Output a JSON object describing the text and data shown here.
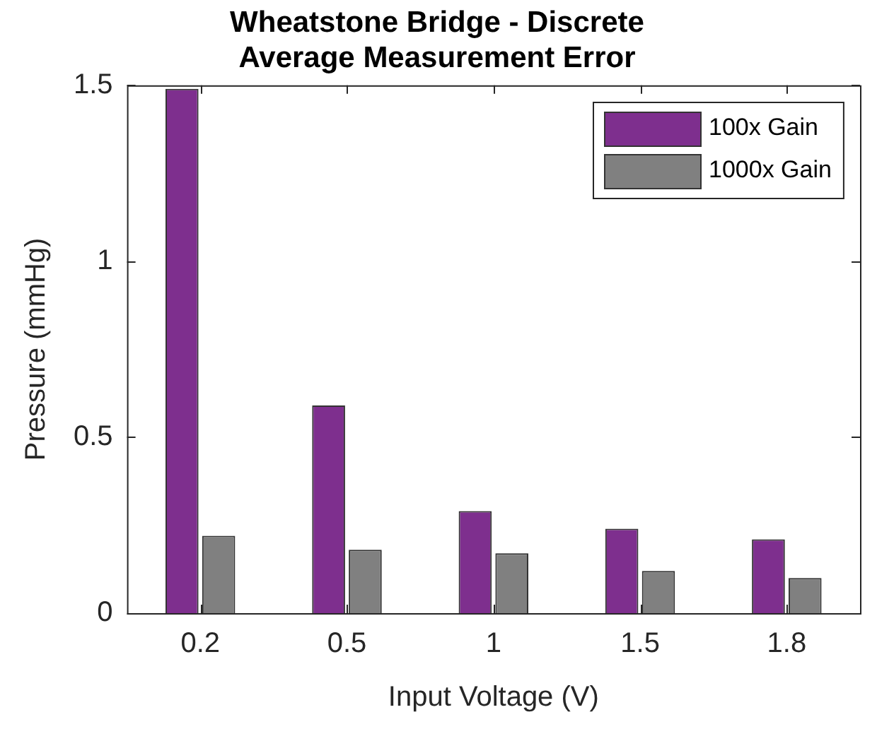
{
  "chart_data": {
    "type": "bar",
    "title": [
      "Wheatstone Bridge - Discrete",
      "Average Measurement Error"
    ],
    "xlabel": "Input Voltage (V)",
    "ylabel": "Pressure (mmHg)",
    "categories": [
      "0.2",
      "0.5",
      "1",
      "1.5",
      "1.8"
    ],
    "series": [
      {
        "name": "100x Gain",
        "color": "#7e2f8e",
        "values": [
          1.49,
          0.59,
          0.29,
          0.24,
          0.21
        ]
      },
      {
        "name": "1000x Gain",
        "color": "#808080",
        "values": [
          0.22,
          0.18,
          0.17,
          0.12,
          0.1
        ]
      }
    ],
    "ylim": [
      0,
      1.5
    ],
    "yticks": [
      0,
      0.5,
      1,
      1.5
    ],
    "grid": false,
    "legend": "top right"
  }
}
